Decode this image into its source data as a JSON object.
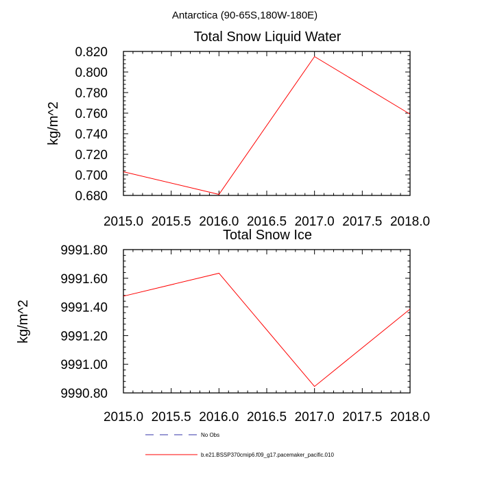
{
  "figure": {
    "suptitle": "Antarctica (90-65S,180W-180E)"
  },
  "chart_data": [
    {
      "type": "line",
      "title": "Total Snow Liquid Water",
      "xlabel": "",
      "ylabel": "kg/m^2",
      "xlim": [
        2015.0,
        2018.0
      ],
      "ylim": [
        0.68,
        0.82
      ],
      "xticks": [
        2015.0,
        2015.5,
        2016.0,
        2016.5,
        2017.0,
        2017.5,
        2018.0
      ],
      "xtick_labels": [
        "2015.0",
        "2015.5",
        "2016.0",
        "2016.5",
        "2017.0",
        "2017.5",
        "2018.0"
      ],
      "yticks": [
        0.68,
        0.7,
        0.72,
        0.74,
        0.76,
        0.78,
        0.8,
        0.82
      ],
      "ytick_labels": [
        "0.680",
        "0.700",
        "0.720",
        "0.740",
        "0.760",
        "0.780",
        "0.800",
        "0.820"
      ],
      "grid": false,
      "series": [
        {
          "name": "b.e21.BSSP370cmip6.f09_g17.pacemaker_pacific.010",
          "color": "#ff0000",
          "x": [
            2015,
            2016,
            2017,
            2018
          ],
          "y": [
            0.703,
            0.681,
            0.815,
            0.759
          ]
        }
      ]
    },
    {
      "type": "line",
      "title": "Total Snow Ice",
      "xlabel": "",
      "ylabel": "kg/m^2",
      "xlim": [
        2015.0,
        2018.0
      ],
      "ylim": [
        9990.8,
        9991.8
      ],
      "xticks": [
        2015.0,
        2015.5,
        2016.0,
        2016.5,
        2017.0,
        2017.5,
        2018.0
      ],
      "xtick_labels": [
        "2015.0",
        "2015.5",
        "2016.0",
        "2016.5",
        "2017.0",
        "2017.5",
        "2018.0"
      ],
      "yticks": [
        9990.8,
        9991.0,
        9991.2,
        9991.4,
        9991.6,
        9991.8
      ],
      "ytick_labels": [
        "9990.80",
        "9991.00",
        "9991.20",
        "9991.40",
        "9991.60",
        "9991.80"
      ],
      "grid": false,
      "series": [
        {
          "name": "b.e21.BSSP370cmip6.f09_g17.pacemaker_pacific.010",
          "color": "#ff0000",
          "x": [
            2015,
            2016,
            2017,
            2018
          ],
          "y": [
            9991.475,
            9991.635,
            9990.845,
            9991.385
          ]
        }
      ]
    }
  ],
  "legend": [
    {
      "label": "No Obs",
      "color": "#3333aa",
      "style": "dashed"
    },
    {
      "label": "b.e21.BSSP370cmip6.f09_g17.pacemaker_pacific.010",
      "color": "#ff0000",
      "style": "solid"
    }
  ]
}
